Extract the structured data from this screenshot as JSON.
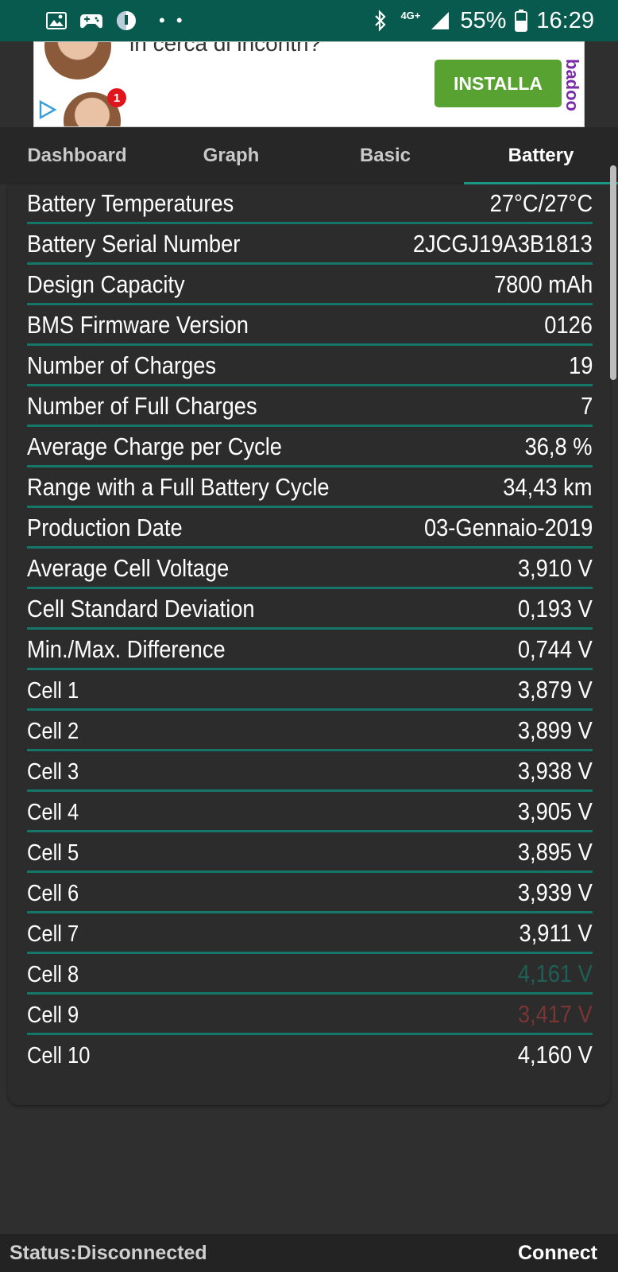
{
  "statusbar": {
    "network": "4G+",
    "battery": "55%",
    "time": "16:29",
    "dots": "• •"
  },
  "ad": {
    "partial_text": "in cerca di incontri?",
    "notification_count": "1",
    "install_label": "INSTALLA",
    "brand": "badoo"
  },
  "tabs": [
    {
      "label": "Dashboard"
    },
    {
      "label": "Graph"
    },
    {
      "label": "Basic"
    },
    {
      "label": "Battery"
    }
  ],
  "active_tab": "Battery",
  "rows": [
    {
      "label": "Battery Temperatures",
      "value": "27°C/27°C"
    },
    {
      "label": "Battery Serial Number",
      "value": "2JCGJ19A3B1813"
    },
    {
      "label": "Design Capacity",
      "value": "7800 mAh"
    },
    {
      "label": "BMS Firmware Version",
      "value": "0126"
    },
    {
      "label": "Number of Charges",
      "value": "19"
    },
    {
      "label": "Number of Full Charges",
      "value": "7"
    },
    {
      "label": "Average Charge per Cycle",
      "value": "36,8 %"
    },
    {
      "label": "Range with a Full Battery Cycle",
      "value": "34,43 km"
    },
    {
      "label": "Production Date",
      "value": "03-Gennaio-2019"
    },
    {
      "label": "Average Cell Voltage",
      "value": "3,910 V"
    },
    {
      "label": "Cell Standard Deviation",
      "value": "0,193 V"
    },
    {
      "label": "Min./Max. Difference",
      "value": "0,744 V"
    },
    {
      "label": "Cell 1",
      "value": "3,879 V"
    },
    {
      "label": "Cell 2",
      "value": "3,899 V"
    },
    {
      "label": "Cell 3",
      "value": "3,938 V"
    },
    {
      "label": "Cell 4",
      "value": "3,905 V"
    },
    {
      "label": "Cell 5",
      "value": "3,895 V"
    },
    {
      "label": "Cell 6",
      "value": "3,939 V"
    },
    {
      "label": "Cell 7",
      "value": "3,911 V"
    },
    {
      "label": "Cell 8",
      "value": "4,161 V",
      "value_color": "#1f5f56"
    },
    {
      "label": "Cell 9",
      "value": "3,417 V",
      "value_color": "#7a3534"
    },
    {
      "label": "Cell 10",
      "value": "4,160 V"
    }
  ],
  "bottom": {
    "status": "Status:Disconnected",
    "connect_label": "Connect"
  },
  "colors": {
    "statusbar": "#075a4d",
    "accent": "#15766a",
    "background": "#2f2f2f"
  }
}
